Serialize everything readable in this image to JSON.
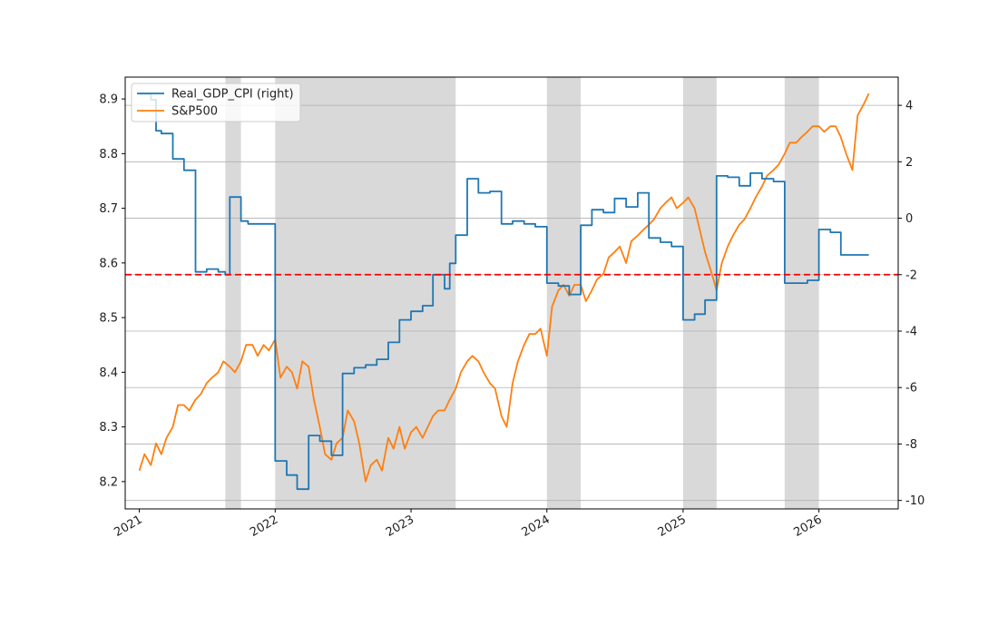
{
  "chart_data": {
    "type": "line",
    "x_axis": {
      "type": "date",
      "range": [
        "2020-11-24",
        "2026-08-02"
      ],
      "ticks": [
        "2021-01-01",
        "2022-01-01",
        "2023-01-01",
        "2024-01-01",
        "2025-01-01",
        "2026-01-01"
      ],
      "tick_labels": [
        "2021",
        "2022",
        "2023",
        "2024",
        "2025",
        "2026"
      ]
    },
    "y_left": {
      "ylim": [
        8.15,
        8.94
      ],
      "ticks": [
        8.2,
        8.3,
        8.4,
        8.5,
        8.6,
        8.7,
        8.8,
        8.9
      ],
      "tick_labels": [
        "8.2",
        "8.3",
        "8.4",
        "8.5",
        "8.6",
        "8.7",
        "8.8",
        "8.9"
      ]
    },
    "y_right": {
      "ylim": [
        -10.3,
        5.0
      ],
      "ticks": [
        -10,
        -8,
        -6,
        -4,
        -2,
        0,
        2,
        4
      ],
      "tick_labels": [
        "-10",
        "-8",
        "-6",
        "-4",
        "-2",
        "0",
        "2",
        "4"
      ],
      "grid": true
    },
    "legend": {
      "placement": "top-left",
      "entries": [
        {
          "label": "Real_GDP_CPI (right)",
          "color": "#1f77b4"
        },
        {
          "label": "S&P500",
          "color": "#ff7f0e"
        }
      ]
    },
    "shaded_periods": [
      [
        "2021-08-20",
        "2021-10-01"
      ],
      [
        "2022-01-01",
        "2023-05-01"
      ],
      [
        "2024-01-01",
        "2024-04-01"
      ],
      [
        "2025-01-01",
        "2025-04-01"
      ],
      [
        "2025-10-01",
        "2026-01-01"
      ]
    ],
    "reference_line": {
      "axis": "right",
      "y": -2.0,
      "color": "#ff0000",
      "style": "dashed"
    },
    "series": [
      {
        "name": "S&P500",
        "axis": "left",
        "color": "#ff7f0e",
        "x": [
          "2021-01-01",
          "2021-01-15",
          "2021-02-01",
          "2021-02-15",
          "2021-03-01",
          "2021-03-15",
          "2021-04-01",
          "2021-04-15",
          "2021-05-01",
          "2021-05-15",
          "2021-06-01",
          "2021-06-15",
          "2021-07-01",
          "2021-07-15",
          "2021-08-01",
          "2021-08-15",
          "2021-09-01",
          "2021-09-15",
          "2021-10-01",
          "2021-10-15",
          "2021-11-01",
          "2021-11-15",
          "2021-12-01",
          "2021-12-15",
          "2022-01-01",
          "2022-01-15",
          "2022-02-01",
          "2022-02-15",
          "2022-03-01",
          "2022-03-15",
          "2022-04-01",
          "2022-04-15",
          "2022-05-01",
          "2022-05-15",
          "2022-06-01",
          "2022-06-15",
          "2022-07-01",
          "2022-07-15",
          "2022-08-01",
          "2022-08-15",
          "2022-09-01",
          "2022-09-15",
          "2022-10-01",
          "2022-10-15",
          "2022-11-01",
          "2022-11-15",
          "2022-12-01",
          "2022-12-15",
          "2023-01-01",
          "2023-01-15",
          "2023-02-01",
          "2023-02-15",
          "2023-03-01",
          "2023-03-15",
          "2023-04-01",
          "2023-04-15",
          "2023-05-01",
          "2023-05-15",
          "2023-06-01",
          "2023-06-15",
          "2023-07-01",
          "2023-07-15",
          "2023-08-01",
          "2023-08-15",
          "2023-09-01",
          "2023-09-15",
          "2023-10-01",
          "2023-10-15",
          "2023-11-01",
          "2023-11-15",
          "2023-12-01",
          "2023-12-15",
          "2024-01-01",
          "2024-01-15",
          "2024-02-01",
          "2024-02-15",
          "2024-03-01",
          "2024-03-15",
          "2024-04-01",
          "2024-04-15",
          "2024-05-01",
          "2024-05-15",
          "2024-06-01",
          "2024-06-15",
          "2024-07-01",
          "2024-07-15",
          "2024-08-01",
          "2024-08-15",
          "2024-09-01",
          "2024-09-15",
          "2024-10-01",
          "2024-10-15",
          "2024-11-01",
          "2024-11-15",
          "2024-12-01",
          "2024-12-15",
          "2025-01-01",
          "2025-01-15",
          "2025-02-01",
          "2025-02-15",
          "2025-03-01",
          "2025-03-15",
          "2025-04-01",
          "2025-04-15",
          "2025-05-01",
          "2025-05-15",
          "2025-06-01",
          "2025-06-15",
          "2025-07-01",
          "2025-07-15",
          "2025-08-01",
          "2025-08-15",
          "2025-09-01",
          "2025-09-15",
          "2025-10-01",
          "2025-10-15",
          "2025-11-01",
          "2025-11-15",
          "2025-12-01",
          "2025-12-15",
          "2026-01-01",
          "2026-01-15",
          "2026-02-01",
          "2026-02-15",
          "2026-03-01",
          "2026-03-15",
          "2026-04-01",
          "2026-04-15",
          "2026-05-01",
          "2026-05-15"
        ],
        "values": [
          8.22,
          8.25,
          8.23,
          8.27,
          8.25,
          8.28,
          8.3,
          8.34,
          8.34,
          8.33,
          8.35,
          8.36,
          8.38,
          8.39,
          8.4,
          8.42,
          8.41,
          8.4,
          8.42,
          8.45,
          8.45,
          8.43,
          8.45,
          8.44,
          8.46,
          8.39,
          8.41,
          8.4,
          8.37,
          8.42,
          8.41,
          8.35,
          8.3,
          8.25,
          8.24,
          8.27,
          8.28,
          8.33,
          8.31,
          8.27,
          8.2,
          8.23,
          8.24,
          8.22,
          8.28,
          8.26,
          8.3,
          8.26,
          8.29,
          8.3,
          8.28,
          8.3,
          8.32,
          8.33,
          8.33,
          8.35,
          8.37,
          8.4,
          8.42,
          8.43,
          8.42,
          8.4,
          8.38,
          8.37,
          8.32,
          8.3,
          8.38,
          8.42,
          8.45,
          8.47,
          8.47,
          8.48,
          8.43,
          8.52,
          8.55,
          8.56,
          8.54,
          8.56,
          8.56,
          8.53,
          8.55,
          8.57,
          8.58,
          8.61,
          8.62,
          8.63,
          8.6,
          8.64,
          8.65,
          8.66,
          8.67,
          8.68,
          8.7,
          8.71,
          8.72,
          8.7,
          8.71,
          8.72,
          8.7,
          8.66,
          8.62,
          8.59,
          8.55,
          8.6,
          8.63,
          8.65,
          8.67,
          8.68,
          8.7,
          8.72,
          8.74,
          8.76,
          8.77,
          8.78,
          8.8,
          8.82,
          8.82,
          8.83,
          8.84,
          8.85,
          8.85,
          8.84,
          8.85,
          8.85,
          8.83,
          8.8,
          8.77,
          8.87,
          8.89,
          8.91
        ],
        "interpolation": "linear"
      },
      {
        "name": "Real_GDP_CPI (right)",
        "axis": "right",
        "color": "#1f77b4",
        "x": [
          "2021-01-01",
          "2021-02-01",
          "2021-02-15",
          "2021-03-01",
          "2021-04-01",
          "2021-05-01",
          "2021-06-01",
          "2021-07-01",
          "2021-07-15",
          "2021-08-01",
          "2021-08-20",
          "2021-09-01",
          "2021-10-01",
          "2021-10-20",
          "2021-11-20",
          "2022-01-01",
          "2022-02-01",
          "2022-03-01",
          "2022-04-01",
          "2022-05-01",
          "2022-06-01",
          "2022-07-01",
          "2022-08-01",
          "2022-09-01",
          "2022-10-01",
          "2022-11-01",
          "2022-12-01",
          "2023-01-01",
          "2023-02-01",
          "2023-03-01",
          "2023-04-01",
          "2023-04-15",
          "2023-05-01",
          "2023-06-01",
          "2023-07-01",
          "2023-08-01",
          "2023-09-01",
          "2023-10-01",
          "2023-11-01",
          "2023-12-01",
          "2024-01-01",
          "2024-02-01",
          "2024-03-01",
          "2024-04-01",
          "2024-05-01",
          "2024-06-01",
          "2024-07-01",
          "2024-08-01",
          "2024-09-01",
          "2024-10-01",
          "2024-11-01",
          "2024-12-01",
          "2025-01-01",
          "2025-02-01",
          "2025-03-01",
          "2025-04-01",
          "2025-05-01",
          "2025-06-01",
          "2025-07-01",
          "2025-08-01",
          "2025-09-01",
          "2025-10-01",
          "2025-11-01",
          "2025-12-01",
          "2026-01-01",
          "2026-02-01",
          "2026-03-01",
          "2026-05-15"
        ],
        "values": [
          4.4,
          4.2,
          3.1,
          3.0,
          2.1,
          1.7,
          -1.9,
          -1.8,
          -1.8,
          -1.9,
          -2.0,
          0.75,
          -0.1,
          -0.2,
          -0.2,
          -8.6,
          -9.1,
          -9.6,
          -7.7,
          -7.9,
          -8.4,
          -5.5,
          -5.3,
          -5.2,
          -5.0,
          -4.4,
          -3.6,
          -3.3,
          -3.1,
          -2.0,
          -2.5,
          -1.6,
          -0.6,
          1.4,
          0.9,
          0.95,
          -0.2,
          -0.1,
          -0.2,
          -0.3,
          -2.3,
          -2.4,
          -2.7,
          -0.25,
          0.3,
          0.2,
          0.7,
          0.4,
          0.9,
          -0.7,
          -0.85,
          -1.0,
          -3.6,
          -3.4,
          -2.9,
          1.5,
          1.45,
          1.15,
          1.6,
          1.4,
          1.3,
          -2.3,
          -2.3,
          -2.2,
          -0.4,
          -0.5,
          -1.3,
          -1.3
        ],
        "interpolation": "step-post"
      }
    ]
  }
}
